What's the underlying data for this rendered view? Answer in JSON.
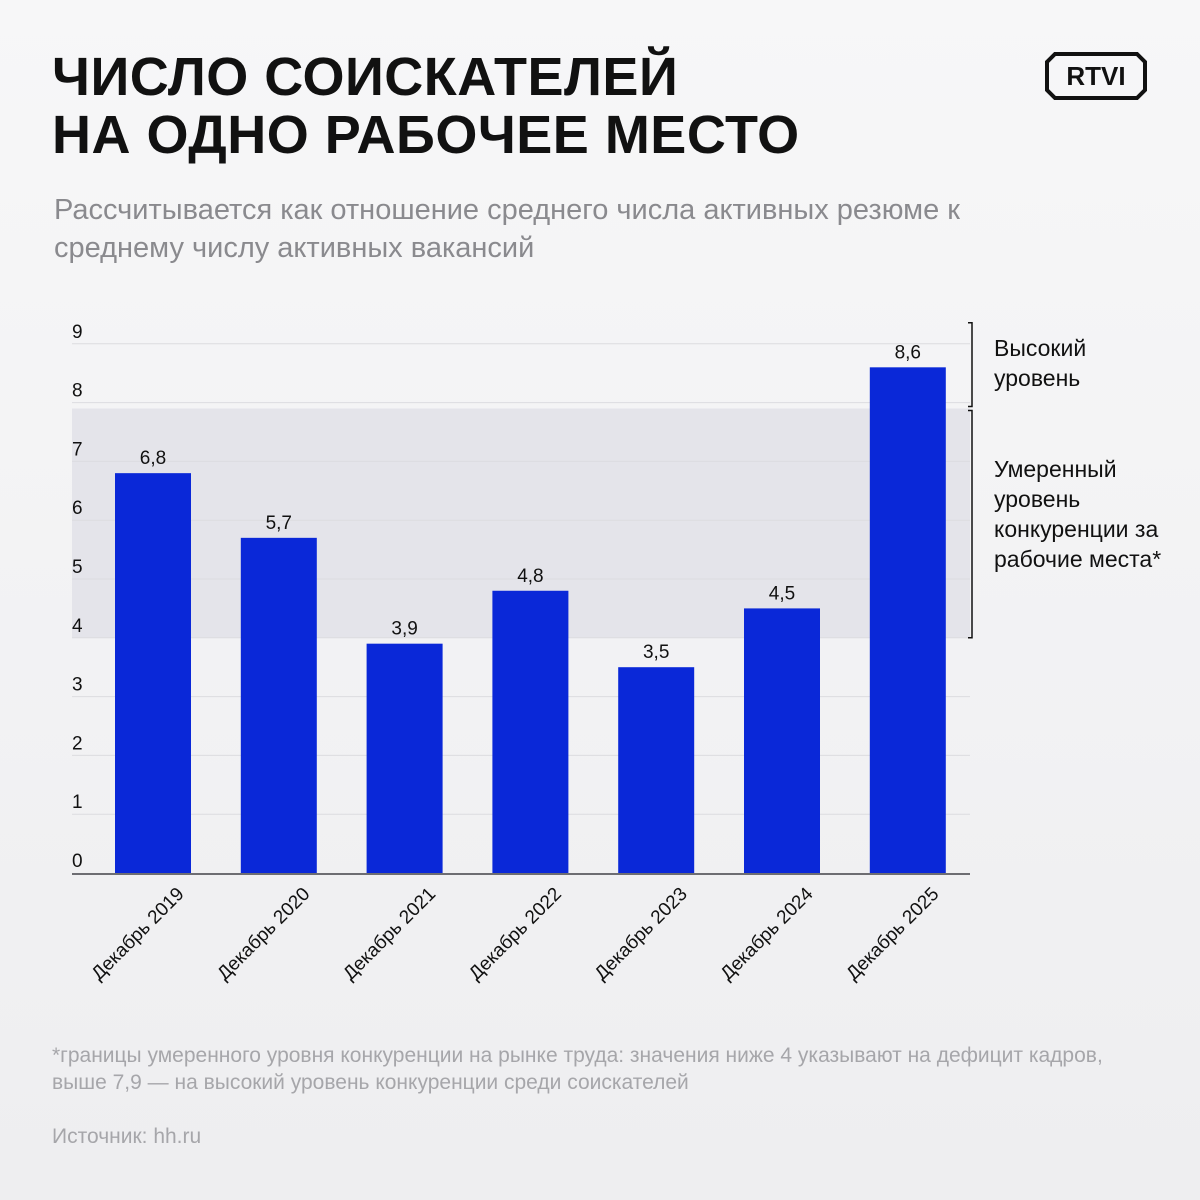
{
  "header": {
    "title_line1": "ЧИСЛО СОИСКАТЕЛЕЙ",
    "title_line2": "НА ОДНО РАБОЧЕЕ МЕСТО",
    "subtitle": "Рассчитывается как отношение среднего числа активных резюме к среднему числу активных вакансий",
    "logo_text": "RTVI"
  },
  "colors": {
    "bar": "#0a28d8",
    "band": "#e4e4ea",
    "axis": "#6d6d72",
    "grid": "#dcdce0"
  },
  "chart_data": {
    "type": "bar",
    "title": "ЧИСЛО СОИСКАТЕЛЕЙ НА ОДНО РАБОЧЕЕ МЕСТО",
    "categories": [
      "Декабрь 2019",
      "Декабрь 2020",
      "Декабрь 2021",
      "Декабрь 2022",
      "Декабрь 2023",
      "Декабрь 2024",
      "Декабрь 2025"
    ],
    "values": [
      6.8,
      5.7,
      3.9,
      4.8,
      3.5,
      4.5,
      8.6
    ],
    "value_labels": [
      "6,8",
      "5,7",
      "3,9",
      "4,8",
      "3,5",
      "4,5",
      "8,6"
    ],
    "y_ticks": [
      "0",
      "1",
      "2",
      "3",
      "4",
      "5",
      "6",
      "7",
      "8",
      "9"
    ],
    "ylim": [
      0,
      9
    ],
    "xlabel": "",
    "ylabel": "",
    "band": {
      "from": 4,
      "to": 7.9
    },
    "band_labels": {
      "high": "Высокий уровень",
      "moderate": "Умеренный уровень конкуренции за рабочие места*"
    }
  },
  "footer": {
    "footnote": "*границы умеренного уровня конкуренции на рынке труда: значения ниже 4 указывают на дефицит кадров, выше 7,9 — на высокий уровень конкуренции среди соискателей",
    "source": "Источник: hh.ru"
  }
}
